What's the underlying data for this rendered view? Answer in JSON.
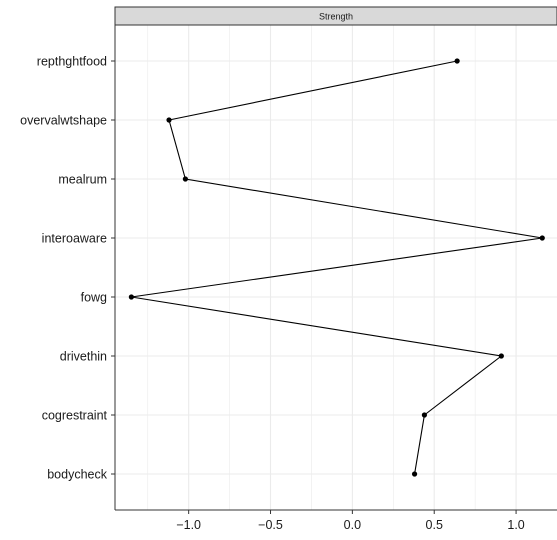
{
  "chart_data": {
    "type": "line",
    "panel_title": "Strength",
    "categories": [
      "repthghtfood",
      "overvalwtshape",
      "mealrum",
      "interoaware",
      "fowg",
      "drivethin",
      "cogrestraint",
      "bodycheck"
    ],
    "values": [
      0.64,
      -1.12,
      -1.02,
      1.16,
      -1.35,
      0.91,
      0.44,
      0.38
    ],
    "xlim": [
      -1.45,
      1.25
    ],
    "xticks": [
      -1.0,
      -0.5,
      0.0,
      0.5,
      1.0
    ],
    "xtick_labels": [
      "−1.0",
      "−0.5",
      "0.0",
      "0.5",
      "1.0"
    ],
    "xminor": [
      -1.25,
      -0.75,
      -0.25,
      0.25,
      0.75
    ],
    "grid": true,
    "colors": {
      "line": "#000000",
      "point": "#000000",
      "grid": "#ebebeb",
      "strip": "#d9d9d9",
      "frame": "#333333"
    }
  }
}
